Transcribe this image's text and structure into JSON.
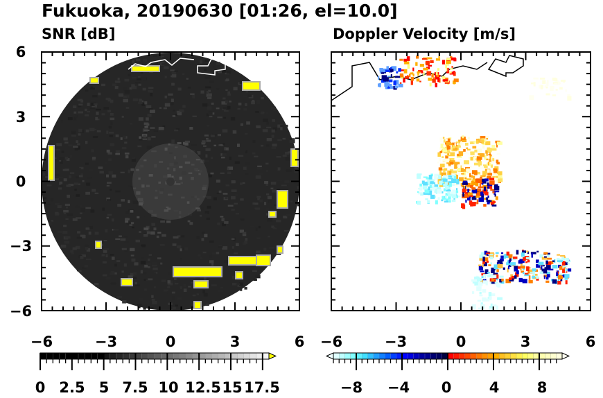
{
  "chart_data": [
    {
      "type": "heatmap",
      "title": "Fukuoka, 20190630 [01:26, el=10.0]",
      "subtitle": "SNR [dB]",
      "xlim": [
        -6,
        6
      ],
      "ylim": [
        -6,
        6
      ],
      "xticks": [
        "−6",
        "−3",
        "0",
        "3",
        "6"
      ],
      "yticks": [
        "6",
        "3",
        "0",
        "−3",
        "−6"
      ],
      "colorbar": {
        "min": 0,
        "max": 18,
        "step": 0.5,
        "gray_start": 5,
        "extend": "max",
        "extend_color": "#ffff00",
        "ticks": [
          "0",
          "2.5",
          "5",
          "7.5",
          "10",
          "12.5",
          "15",
          "17.5"
        ]
      }
    },
    {
      "type": "heatmap",
      "subtitle": "Doppler Velocity [m/s]",
      "xlim": [
        -6,
        6
      ],
      "ylim": [
        -6,
        6
      ],
      "xticks": [
        "−6",
        "−3",
        "0",
        "3",
        "6"
      ],
      "colorbar": {
        "min": -10,
        "max": 10,
        "step": 0.5,
        "extend": "both",
        "ticks": [
          "−8",
          "−4",
          "0",
          "4",
          "8"
        ]
      }
    }
  ]
}
